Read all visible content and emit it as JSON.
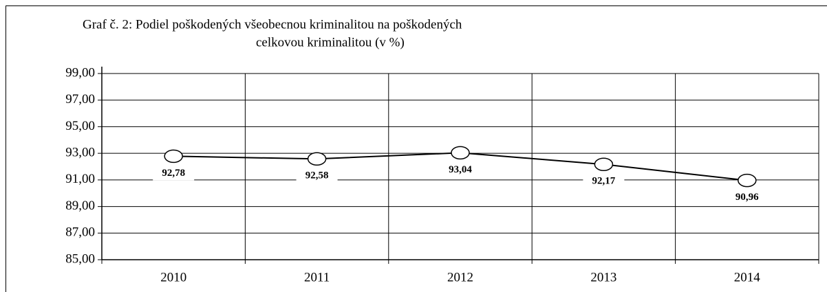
{
  "chart_data": {
    "type": "line",
    "title": [
      "Graf č. 2: Podiel  poškodených všeobecnou kriminalitou na poškodených",
      "celkovou kriminalitou (v  %)"
    ],
    "categories": [
      "2010",
      "2011",
      "2012",
      "2013",
      "2014"
    ],
    "values": [
      92.78,
      92.58,
      93.04,
      92.17,
      90.96
    ],
    "value_labels": [
      "92,78",
      "92,58",
      "93,04",
      "92,17",
      "90,96"
    ],
    "color": "#000000",
    "ylim": [
      85,
      99
    ],
    "yticks": [
      {
        "value": 85,
        "label": "85,00"
      },
      {
        "value": 87,
        "label": "87,00"
      },
      {
        "value": 89,
        "label": "89,00"
      },
      {
        "value": 91,
        "label": "91,00"
      },
      {
        "value": 93,
        "label": "93,00"
      },
      {
        "value": 95,
        "label": "95,00"
      },
      {
        "value": 97,
        "label": "97,00"
      },
      {
        "value": 99,
        "label": "99,00"
      }
    ],
    "grid": true
  }
}
